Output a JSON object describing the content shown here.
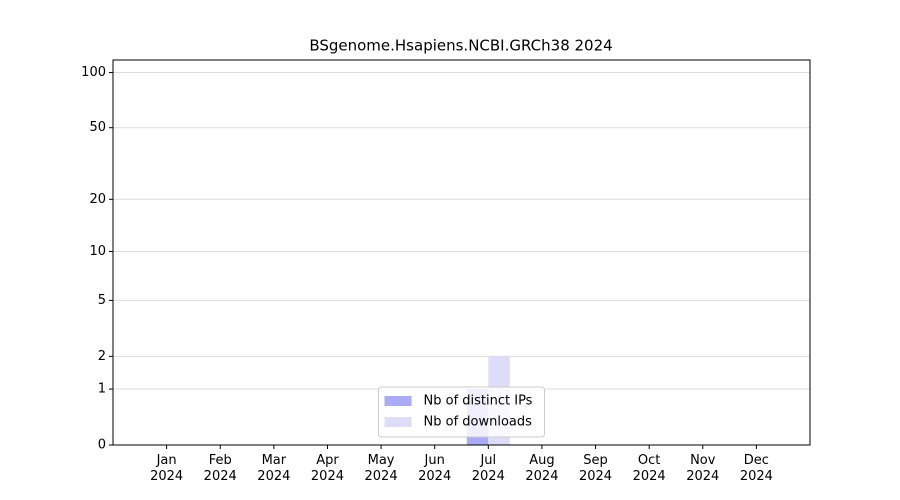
{
  "chart_data": {
    "type": "bar",
    "title": "BSgenome.Hsapiens.NCBI.GRCh38 2024",
    "categories": [
      "Jan 2024",
      "Feb 2024",
      "Mar 2024",
      "Apr 2024",
      "May 2024",
      "Jun 2024",
      "Jul 2024",
      "Aug 2024",
      "Sep 2024",
      "Oct 2024",
      "Nov 2024",
      "Dec 2024"
    ],
    "series": [
      {
        "name": "Nb of distinct IPs",
        "color": "#aaaaf5",
        "values": [
          0,
          0,
          0,
          0,
          0,
          0,
          1,
          0,
          0,
          0,
          0,
          0
        ]
      },
      {
        "name": "Nb of downloads",
        "color": "#ddddfa",
        "values": [
          0,
          0,
          0,
          0,
          0,
          0,
          2,
          0,
          0,
          0,
          0,
          0
        ]
      }
    ],
    "yscale": "log1p",
    "ylim": [
      0,
      117
    ],
    "yticks": [
      0,
      1,
      2,
      5,
      10,
      20,
      50,
      100
    ],
    "grid": true,
    "legend": "lower center"
  }
}
